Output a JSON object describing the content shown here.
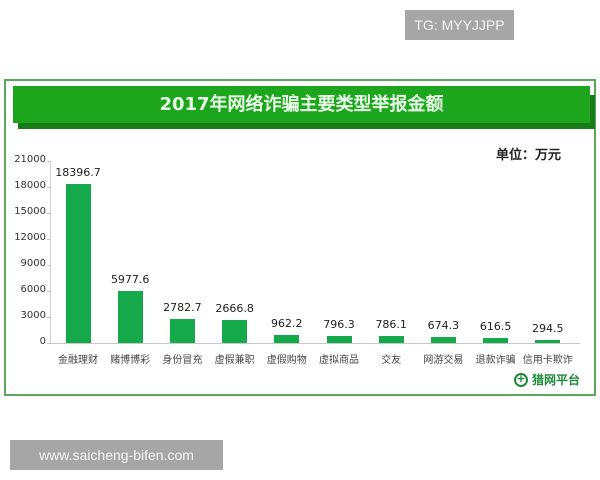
{
  "watermarks": {
    "top_right": "TG: MYYJJPP",
    "bottom_left": "www.saicheng-bifen.com"
  },
  "header": {
    "title": "2017年网络诈骗主要类型举报金额",
    "unit": "单位：万元"
  },
  "logo": {
    "icon": "shield-plus-icon",
    "text": "猎网平台"
  },
  "colors": {
    "title_band": "#1ea51e",
    "title_shadow": "#187d18",
    "bar": "#16a94b",
    "frame_border": "#5aa85a"
  },
  "chart_data": {
    "type": "bar",
    "title": "2017年网络诈骗主要类型举报金额",
    "xlabel": "",
    "ylabel": "",
    "unit": "万元",
    "ylim": [
      0,
      21000
    ],
    "yticks": [
      0,
      3000,
      6000,
      9000,
      12000,
      15000,
      18000,
      21000
    ],
    "grid": false,
    "legend": null,
    "categories": [
      "金融理财",
      "赌博博彩",
      "身份冒充",
      "虚假兼职",
      "虚假购物",
      "虚拟商品",
      "交友",
      "网游交易",
      "退款诈骗",
      "信用卡欺诈"
    ],
    "values": [
      18396.7,
      5977.6,
      2782.7,
      2666.8,
      962.2,
      796.3,
      786.1,
      674.3,
      616.5,
      294.5
    ],
    "value_labels": [
      "18396.7",
      "5977.6",
      "2782.7",
      "2666.8",
      "962.2",
      "796.3",
      "786.1",
      "674.3",
      "616.5",
      "294.5"
    ]
  }
}
